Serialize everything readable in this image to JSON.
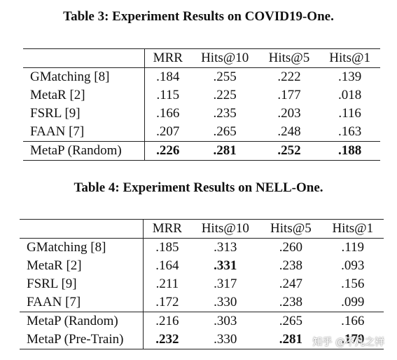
{
  "table3": {
    "caption": "Table 3: Experiment Results on COVID19-One.",
    "headers": [
      "",
      "MRR",
      "Hits@10",
      "Hits@5",
      "Hits@1"
    ],
    "rows": [
      {
        "name": "GMatching [8]",
        "cells": [
          ".184",
          ".255",
          ".222",
          ".139"
        ],
        "bold": [
          false,
          false,
          false,
          false
        ]
      },
      {
        "name": "MetaR [2]",
        "cells": [
          ".115",
          ".225",
          ".177",
          ".018"
        ],
        "bold": [
          false,
          false,
          false,
          false
        ]
      },
      {
        "name": "FSRL [9]",
        "cells": [
          ".166",
          ".235",
          ".203",
          ".116"
        ],
        "bold": [
          false,
          false,
          false,
          false
        ]
      },
      {
        "name": "FAAN [7]",
        "cells": [
          ".207",
          ".265",
          ".248",
          ".163"
        ],
        "bold": [
          false,
          false,
          false,
          false
        ]
      },
      {
        "name": "MetaP (Random)",
        "cells": [
          ".226",
          ".281",
          ".252",
          ".188"
        ],
        "bold": [
          true,
          true,
          true,
          true
        ],
        "divider": true
      }
    ]
  },
  "table4": {
    "caption": "Table 4: Experiment Results on NELL-One.",
    "headers": [
      "",
      "MRR",
      "Hits@10",
      "Hits@5",
      "Hits@1"
    ],
    "rows": [
      {
        "name": "GMatching [8]",
        "cells": [
          ".185",
          ".313",
          ".260",
          ".119"
        ],
        "bold": [
          false,
          false,
          false,
          false
        ]
      },
      {
        "name": "MetaR [2]",
        "cells": [
          ".164",
          ".331",
          ".238",
          ".093"
        ],
        "bold": [
          false,
          true,
          false,
          false
        ]
      },
      {
        "name": "FSRL [9]",
        "cells": [
          ".211",
          ".317",
          ".247",
          ".156"
        ],
        "bold": [
          false,
          false,
          false,
          false
        ]
      },
      {
        "name": "FAAN [7]",
        "cells": [
          ".172",
          ".330",
          ".238",
          ".099"
        ],
        "bold": [
          false,
          false,
          false,
          false
        ]
      },
      {
        "name": "MetaP (Random)",
        "cells": [
          ".216",
          ".303",
          ".265",
          ".166"
        ],
        "bold": [
          false,
          false,
          false,
          false
        ],
        "divider": true
      },
      {
        "name": "MetaP (Pre-Train)",
        "cells": [
          ".232",
          ".330",
          ".281",
          ".179"
        ],
        "bold": [
          true,
          false,
          true,
          true
        ]
      }
    ]
  },
  "watermark": "知乎 @不凡之祥"
}
